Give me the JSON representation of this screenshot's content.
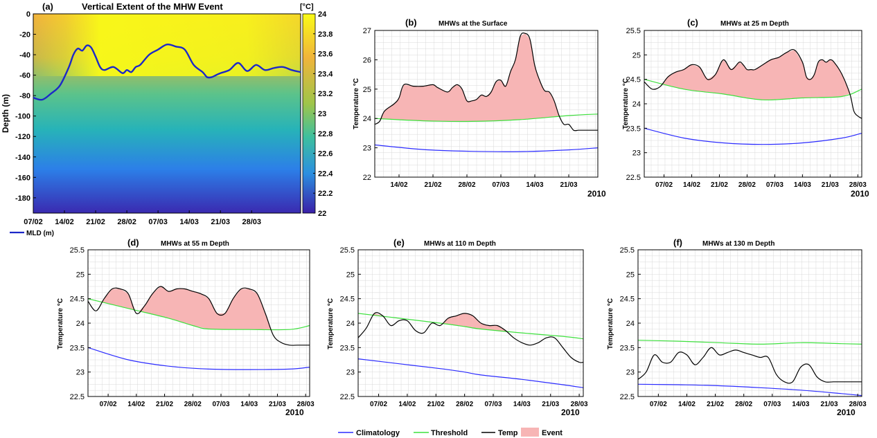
{
  "colors": {
    "climatology": "#2b2bff",
    "threshold": "#3de03d",
    "temp": "#000000",
    "event": "#f7b5b5",
    "mld": "#1c28c8",
    "grid": "#d9d9d9"
  },
  "legend": {
    "climatology": "Climatology",
    "threshold": "Threshold",
    "temp": "Temp",
    "event": "Event",
    "mld": "MLD (m)"
  },
  "chart_data": [
    {
      "id": "a",
      "type": "heatmap",
      "panel_label": "(a)",
      "title": "Vertical Extent  of the MHW Event",
      "ylabel": "Depth (m)",
      "colorbar_unit": "[°C]",
      "xlim": [
        0,
        60
      ],
      "ylim": [
        -195,
        0
      ],
      "x_ticks": [
        {
          "x": 0,
          "label": "07/02"
        },
        {
          "x": 7,
          "label": "14/02"
        },
        {
          "x": 14,
          "label": "21/02"
        },
        {
          "x": 21,
          "label": "28/02"
        },
        {
          "x": 28,
          "label": "07/03"
        },
        {
          "x": 35,
          "label": "14/03"
        },
        {
          "x": 42,
          "label": "21/03"
        },
        {
          "x": 49,
          "label": "28/03"
        }
      ],
      "y_ticks": [
        0,
        -20,
        -40,
        -60,
        -80,
        -100,
        -120,
        -140,
        -160,
        -180
      ],
      "colorbar_ticks": [
        "24",
        "23.8",
        "23.6",
        "23.4",
        "23.2",
        "23",
        "22.8",
        "22.6",
        "22.4",
        "22.2",
        "22"
      ],
      "colorbar_range": [
        22,
        24
      ],
      "mld_series": {
        "name": "MLD (m)",
        "x": [
          0,
          2,
          4,
          6,
          8,
          9,
          10,
          11,
          12,
          13,
          14,
          15,
          16,
          18,
          20,
          21,
          22,
          23,
          24,
          26,
          28,
          30,
          32,
          34,
          36,
          38,
          39,
          40,
          41,
          42,
          44,
          46,
          48,
          50,
          52,
          54,
          56,
          58,
          60
        ],
        "y": [
          -82,
          -84,
          -78,
          -70,
          -52,
          -40,
          -34,
          -36,
          -31,
          -33,
          -42,
          -52,
          -55,
          -52,
          -58,
          -55,
          -57,
          -52,
          -50,
          -40,
          -35,
          -30,
          -32,
          -35,
          -50,
          -57,
          -62,
          -62,
          -60,
          -58,
          -55,
          -48,
          -56,
          -50,
          -55,
          -53,
          -52,
          -55,
          -57
        ]
      }
    },
    {
      "id": "b",
      "type": "area",
      "panel_label": "(b)",
      "title": "MHWs at the Surface",
      "ylabel": "Temperature  °C",
      "year_label": "2010",
      "xlim": [
        0,
        46
      ],
      "ylim": [
        22,
        27
      ],
      "y_ticks": [
        22,
        23,
        24,
        25,
        26,
        27
      ],
      "x_ticks": [
        {
          "x": 5,
          "label": "14/02"
        },
        {
          "x": 12,
          "label": "21/02"
        },
        {
          "x": 19,
          "label": "28/02"
        },
        {
          "x": 26,
          "label": "07/03"
        },
        {
          "x": 33,
          "label": "14/03"
        },
        {
          "x": 40,
          "label": "21/03"
        }
      ],
      "series": [
        {
          "name": "Climatology",
          "x": [
            0,
            10,
            20,
            30,
            40,
            46
          ],
          "y": [
            23.1,
            22.94,
            22.88,
            22.87,
            22.93,
            23.0
          ]
        },
        {
          "name": "Threshold",
          "x": [
            0,
            10,
            20,
            30,
            40,
            46
          ],
          "y": [
            24.0,
            23.92,
            23.9,
            23.96,
            24.1,
            24.15
          ]
        },
        {
          "name": "Temp",
          "x": [
            0,
            1,
            2,
            4,
            5,
            6,
            8,
            10,
            12,
            13,
            15,
            16,
            17,
            18,
            19,
            20,
            21,
            22,
            23,
            24,
            25,
            26,
            27,
            28,
            29,
            30,
            31,
            32,
            33,
            34,
            35,
            36,
            37,
            38,
            39,
            40,
            41,
            42,
            43,
            44,
            45,
            46
          ],
          "y": [
            23.8,
            23.9,
            24.25,
            24.5,
            24.7,
            25.15,
            25.1,
            25.1,
            25.15,
            25.05,
            24.9,
            25.05,
            25.15,
            25.0,
            24.6,
            24.6,
            24.65,
            24.8,
            24.75,
            24.9,
            25.25,
            25.3,
            25.1,
            25.6,
            26.0,
            26.8,
            26.9,
            26.7,
            25.8,
            25.3,
            24.95,
            24.9,
            24.6,
            24.1,
            23.8,
            23.8,
            23.6,
            23.6,
            23.6,
            23.6,
            23.6,
            23.6
          ]
        }
      ]
    },
    {
      "id": "c",
      "type": "area",
      "panel_label": "(c)",
      "title": "MHWs at 25 m Depth",
      "ylabel": "Temperature  °C",
      "year_label": "2010",
      "xlim": [
        0,
        55
      ],
      "ylim": [
        22.5,
        25.5
      ],
      "y_ticks": [
        22.5,
        23,
        23.5,
        24,
        24.5,
        25,
        25.5
      ],
      "x_ticks": [
        {
          "x": 5,
          "label": "07/02"
        },
        {
          "x": 12,
          "label": "14/02"
        },
        {
          "x": 19,
          "label": "21/02"
        },
        {
          "x": 26,
          "label": "28/02"
        },
        {
          "x": 33,
          "label": "07/03"
        },
        {
          "x": 40,
          "label": "14/03"
        },
        {
          "x": 47,
          "label": "21/03"
        },
        {
          "x": 54,
          "label": "28/03"
        }
      ],
      "series": [
        {
          "name": "Climatology",
          "x": [
            0,
            10,
            20,
            30,
            40,
            50,
            55
          ],
          "y": [
            23.5,
            23.3,
            23.2,
            23.17,
            23.2,
            23.3,
            23.4
          ]
        },
        {
          "name": "Threshold",
          "x": [
            0,
            10,
            20,
            30,
            40,
            50,
            55
          ],
          "y": [
            24.5,
            24.3,
            24.2,
            24.08,
            24.12,
            24.15,
            24.3
          ]
        },
        {
          "name": "Temp",
          "x": [
            0,
            2,
            4,
            6,
            8,
            10,
            12,
            14,
            16,
            18,
            20,
            22,
            24,
            25,
            26,
            27,
            28,
            30,
            32,
            34,
            36,
            38,
            40,
            41,
            42,
            43,
            44,
            45,
            46,
            47,
            48,
            50,
            52,
            53,
            54,
            55
          ],
          "y": [
            24.45,
            24.3,
            24.35,
            24.55,
            24.65,
            24.7,
            24.8,
            24.75,
            24.5,
            24.6,
            24.9,
            24.7,
            24.85,
            24.8,
            24.7,
            24.7,
            24.7,
            24.8,
            24.9,
            24.95,
            25.05,
            25.1,
            24.85,
            24.55,
            24.5,
            24.6,
            24.85,
            24.9,
            24.85,
            24.9,
            24.85,
            24.6,
            24.2,
            23.85,
            23.75,
            23.7
          ]
        }
      ]
    },
    {
      "id": "d",
      "type": "area",
      "panel_label": "(d)",
      "title": "MHWs at 55 m Depth",
      "ylabel": "Temperature  °C",
      "year_label": "2010",
      "xlim": [
        0,
        55
      ],
      "ylim": [
        22.5,
        25.5
      ],
      "y_ticks": [
        22.5,
        23,
        23.5,
        24,
        24.5,
        25,
        25.5
      ],
      "x_ticks": [
        {
          "x": 5,
          "label": "07/02"
        },
        {
          "x": 12,
          "label": "14/02"
        },
        {
          "x": 19,
          "label": "21/02"
        },
        {
          "x": 26,
          "label": "28/02"
        },
        {
          "x": 33,
          "label": "07/03"
        },
        {
          "x": 40,
          "label": "14/03"
        },
        {
          "x": 47,
          "label": "21/03"
        },
        {
          "x": 54,
          "label": "28/03"
        }
      ],
      "series": [
        {
          "name": "Climatology",
          "x": [
            0,
            10,
            20,
            30,
            40,
            50,
            55
          ],
          "y": [
            23.5,
            23.25,
            23.12,
            23.06,
            23.05,
            23.06,
            23.1
          ]
        },
        {
          "name": "Threshold",
          "x": [
            0,
            10,
            20,
            26,
            30,
            40,
            50,
            55
          ],
          "y": [
            24.5,
            24.3,
            24.1,
            23.95,
            23.88,
            23.87,
            23.87,
            23.95
          ]
        },
        {
          "name": "Temp",
          "x": [
            0,
            2,
            4,
            6,
            8,
            10,
            12,
            14,
            16,
            18,
            20,
            22,
            24,
            26,
            28,
            30,
            32,
            34,
            36,
            38,
            40,
            42,
            44,
            46,
            48,
            50,
            52,
            54,
            55
          ],
          "y": [
            24.45,
            24.25,
            24.5,
            24.7,
            24.7,
            24.6,
            24.2,
            24.35,
            24.6,
            24.75,
            24.65,
            24.7,
            24.7,
            24.65,
            24.6,
            24.5,
            24.2,
            24.2,
            24.5,
            24.7,
            24.7,
            24.6,
            24.2,
            23.75,
            23.6,
            23.55,
            23.55,
            23.55,
            23.55
          ]
        }
      ]
    },
    {
      "id": "e",
      "type": "area",
      "panel_label": "(e)",
      "title": "MHWs at 110 m Depth",
      "ylabel": "Temperature  °C",
      "year_label": "2010",
      "xlim": [
        0,
        55
      ],
      "ylim": [
        22.5,
        25.5
      ],
      "y_ticks": [
        22.5,
        23,
        23.5,
        24,
        24.5,
        25,
        25.5
      ],
      "x_ticks": [
        {
          "x": 5,
          "label": "07/02"
        },
        {
          "x": 12,
          "label": "14/02"
        },
        {
          "x": 19,
          "label": "21/02"
        },
        {
          "x": 26,
          "label": "28/02"
        },
        {
          "x": 33,
          "label": "07/03"
        },
        {
          "x": 40,
          "label": "14/03"
        },
        {
          "x": 47,
          "label": "21/03"
        },
        {
          "x": 54,
          "label": "28/03"
        }
      ],
      "series": [
        {
          "name": "Climatology",
          "x": [
            0,
            10,
            20,
            26,
            30,
            40,
            50,
            55
          ],
          "y": [
            23.27,
            23.17,
            23.07,
            23.0,
            22.94,
            22.85,
            22.74,
            22.68
          ]
        },
        {
          "name": "Threshold",
          "x": [
            0,
            10,
            20,
            26,
            30,
            40,
            50,
            55
          ],
          "y": [
            24.2,
            24.1,
            24.0,
            23.93,
            23.88,
            23.8,
            23.73,
            23.68
          ]
        },
        {
          "name": "Temp",
          "x": [
            0,
            2,
            4,
            6,
            8,
            10,
            12,
            14,
            16,
            18,
            20,
            22,
            24,
            26,
            28,
            30,
            32,
            34,
            36,
            38,
            40,
            42,
            44,
            46,
            48,
            50,
            52,
            54,
            55
          ],
          "y": [
            23.7,
            23.9,
            24.2,
            24.15,
            23.95,
            24.05,
            24.05,
            23.85,
            23.8,
            24.0,
            23.95,
            24.1,
            24.15,
            24.2,
            24.15,
            24.0,
            23.95,
            23.95,
            23.85,
            23.7,
            23.6,
            23.55,
            23.6,
            23.7,
            23.7,
            23.5,
            23.3,
            23.2,
            23.2
          ]
        }
      ]
    },
    {
      "id": "f",
      "type": "line",
      "panel_label": "(f)",
      "title": "MHWs at 130 m Depth",
      "ylabel": "Temperature  °C",
      "year_label": "2010",
      "xlim": [
        0,
        55
      ],
      "ylim": [
        22.5,
        25.5
      ],
      "y_ticks": [
        22.5,
        23,
        23.5,
        24,
        24.5,
        25,
        25.5
      ],
      "x_ticks": [
        {
          "x": 5,
          "label": "07/02"
        },
        {
          "x": 12,
          "label": "14/02"
        },
        {
          "x": 19,
          "label": "21/02"
        },
        {
          "x": 26,
          "label": "28/02"
        },
        {
          "x": 33,
          "label": "07/03"
        },
        {
          "x": 40,
          "label": "14/03"
        },
        {
          "x": 47,
          "label": "21/03"
        },
        {
          "x": 54,
          "label": "28/03"
        }
      ],
      "series": [
        {
          "name": "Climatology",
          "x": [
            0,
            10,
            20,
            30,
            40,
            50,
            55
          ],
          "y": [
            22.75,
            22.74,
            22.72,
            22.68,
            22.63,
            22.56,
            22.52
          ]
        },
        {
          "name": "Threshold",
          "x": [
            0,
            10,
            20,
            30,
            40,
            50,
            55
          ],
          "y": [
            23.65,
            23.63,
            23.6,
            23.57,
            23.6,
            23.58,
            23.57
          ]
        },
        {
          "name": "Temp",
          "x": [
            0,
            2,
            4,
            6,
            8,
            10,
            12,
            14,
            16,
            18,
            20,
            22,
            24,
            26,
            28,
            30,
            32,
            34,
            36,
            38,
            40,
            42,
            44,
            46,
            48,
            50,
            52,
            54,
            55
          ],
          "y": [
            22.85,
            23.0,
            23.35,
            23.2,
            23.2,
            23.4,
            23.35,
            23.15,
            23.3,
            23.5,
            23.35,
            23.4,
            23.45,
            23.4,
            23.35,
            23.3,
            23.3,
            22.95,
            22.8,
            22.8,
            23.1,
            23.15,
            22.9,
            22.8,
            22.8,
            22.8,
            22.8,
            22.8,
            22.8
          ]
        }
      ]
    }
  ]
}
